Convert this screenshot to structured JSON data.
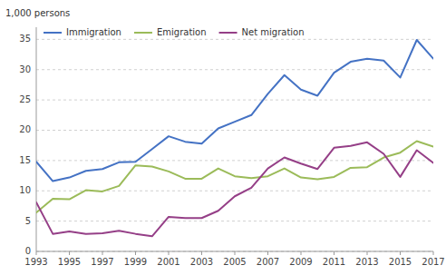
{
  "chart_data": {
    "type": "line",
    "y_label": "1,000 persons",
    "x": [
      1993,
      1994,
      1995,
      1996,
      1997,
      1998,
      1999,
      2000,
      2001,
      2002,
      2003,
      2004,
      2005,
      2006,
      2007,
      2008,
      2009,
      2010,
      2011,
      2012,
      2013,
      2014,
      2015,
      2016,
      2017
    ],
    "series": [
      {
        "name": "Immigration",
        "color": "#4472C4",
        "values": [
          14.8,
          11.6,
          12.2,
          13.3,
          13.6,
          14.7,
          14.8,
          16.9,
          19.0,
          18.1,
          17.8,
          20.3,
          21.4,
          22.5,
          26.0,
          29.1,
          26.7,
          25.7,
          29.5,
          31.3,
          31.8,
          31.5,
          28.7,
          34.9,
          31.8
        ]
      },
      {
        "name": "Emigration",
        "color": "#9BBB59",
        "values": [
          6.4,
          8.7,
          8.6,
          10.1,
          9.9,
          10.8,
          14.2,
          14.0,
          13.2,
          12.0,
          12.0,
          13.7,
          12.4,
          12.1,
          12.4,
          13.7,
          12.2,
          11.9,
          12.3,
          13.8,
          13.9,
          15.5,
          16.3,
          18.2,
          17.3
        ]
      },
      {
        "name": "Net migration",
        "color": "#953F87",
        "values": [
          8.1,
          2.9,
          3.3,
          2.9,
          3.0,
          3.4,
          2.9,
          2.5,
          5.7,
          5.5,
          5.5,
          6.7,
          9.1,
          10.5,
          13.7,
          15.5,
          14.5,
          13.6,
          17.1,
          17.4,
          18.0,
          16.1,
          12.3,
          16.7,
          14.6
        ]
      }
    ],
    "xlim": [
      1993,
      2017
    ],
    "xticks": [
      1993,
      1995,
      1997,
      1999,
      2001,
      2003,
      2005,
      2007,
      2009,
      2011,
      2013,
      2015,
      2017
    ],
    "ylim": [
      0,
      37
    ],
    "yticks": [
      0,
      5,
      10,
      15,
      20,
      25,
      30,
      35
    ],
    "grid": true,
    "legend": "upper left"
  }
}
